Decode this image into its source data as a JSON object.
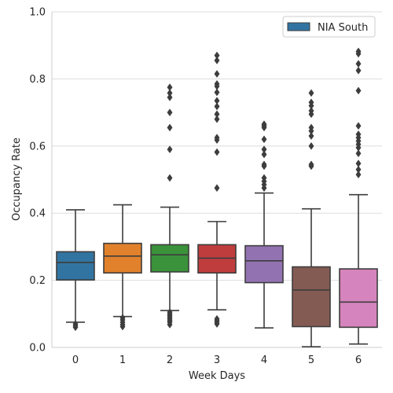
{
  "chart_data": {
    "type": "box",
    "xlabel": "Week Days",
    "ylabel": "Occupancy Rate",
    "ylim": [
      0.0,
      1.0
    ],
    "yticks": [
      "0.0",
      "0.2",
      "0.4",
      "0.6",
      "0.8",
      "1.0"
    ],
    "grid": "horizontal",
    "legend": {
      "label": "NIA South",
      "position": "top-right"
    },
    "categories": [
      "0",
      "1",
      "2",
      "3",
      "4",
      "5",
      "6"
    ],
    "boxes": [
      {
        "day": "0",
        "color": "#3274a1",
        "whisker_low": 0.075,
        "q1": 0.201,
        "median": 0.253,
        "q3": 0.285,
        "whisker_high": 0.41,
        "outliers": [
          0.06,
          0.065,
          0.07
        ]
      },
      {
        "day": "1",
        "color": "#e1812c",
        "whisker_low": 0.092,
        "q1": 0.222,
        "median": 0.272,
        "q3": 0.31,
        "whisker_high": 0.425,
        "outliers": [
          0.062,
          0.068,
          0.075,
          0.082,
          0.088
        ]
      },
      {
        "day": "2",
        "color": "#3a923a",
        "whisker_low": 0.11,
        "q1": 0.225,
        "median": 0.276,
        "q3": 0.306,
        "whisker_high": 0.418,
        "outliers": [
          0.068,
          0.075,
          0.08,
          0.085,
          0.09,
          0.095,
          0.1,
          0.105,
          0.505,
          0.59,
          0.655,
          0.7,
          0.745,
          0.758,
          0.775
        ]
      },
      {
        "day": "3",
        "color": "#c03d3e",
        "whisker_low": 0.112,
        "q1": 0.222,
        "median": 0.266,
        "q3": 0.306,
        "whisker_high": 0.375,
        "outliers": [
          0.07,
          0.075,
          0.08,
          0.085,
          0.475,
          0.582,
          0.618,
          0.625,
          0.68,
          0.695,
          0.718,
          0.735,
          0.76,
          0.778,
          0.785,
          0.815,
          0.855,
          0.87
        ]
      },
      {
        "day": "4",
        "color": "#9372b2",
        "whisker_low": 0.058,
        "q1": 0.193,
        "median": 0.258,
        "q3": 0.303,
        "whisker_high": 0.46,
        "outliers": [
          0.475,
          0.485,
          0.495,
          0.505,
          0.54,
          0.545,
          0.575,
          0.59,
          0.62,
          0.655,
          0.66,
          0.665
        ]
      },
      {
        "day": "5",
        "color": "#845b53",
        "whisker_low": 0.002,
        "q1": 0.062,
        "median": 0.171,
        "q3": 0.24,
        "whisker_high": 0.413,
        "outliers": [
          0.54,
          0.545,
          0.6,
          0.63,
          0.645,
          0.655,
          0.695,
          0.705,
          0.72,
          0.73,
          0.758
        ]
      },
      {
        "day": "6",
        "color": "#d684bd",
        "whisker_low": 0.01,
        "q1": 0.06,
        "median": 0.135,
        "q3": 0.234,
        "whisker_high": 0.455,
        "outliers": [
          0.515,
          0.53,
          0.548,
          0.578,
          0.595,
          0.605,
          0.615,
          0.625,
          0.635,
          0.66,
          0.765,
          0.825,
          0.845,
          0.875,
          0.882
        ]
      }
    ]
  }
}
